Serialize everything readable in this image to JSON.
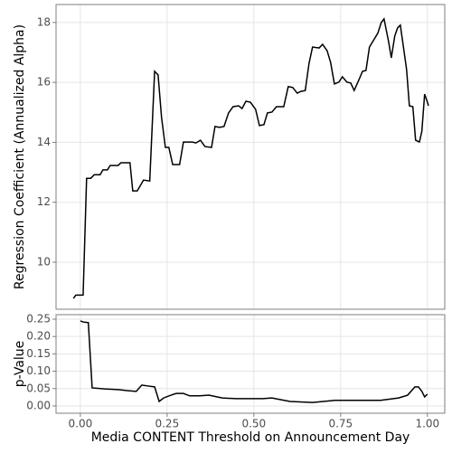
{
  "chart_data": [
    {
      "type": "line",
      "ylabel": "Regression Coefficient (Annualized Alpha)",
      "color": "#000000",
      "grid": true,
      "xlim": [
        -0.07,
        1.05
      ],
      "xticks": [
        0,
        0.25,
        0.5,
        0.75,
        1
      ],
      "ylim": [
        8.43,
        18.6
      ],
      "yticks": [
        10,
        12,
        14,
        16,
        18
      ],
      "x": [
        -0.02,
        -0.013,
        0.008,
        0.018,
        0.03,
        0.04,
        0.057,
        0.065,
        0.078,
        0.086,
        0.109,
        0.117,
        0.143,
        0.151,
        0.164,
        0.182,
        0.2,
        0.214,
        0.224,
        0.234,
        0.245,
        0.255,
        0.266,
        0.286,
        0.297,
        0.323,
        0.333,
        0.346,
        0.359,
        0.378,
        0.388,
        0.401,
        0.414,
        0.427,
        0.44,
        0.456,
        0.466,
        0.477,
        0.49,
        0.505,
        0.516,
        0.529,
        0.539,
        0.552,
        0.565,
        0.586,
        0.599,
        0.612,
        0.625,
        0.635,
        0.648,
        0.659,
        0.669,
        0.688,
        0.698,
        0.711,
        0.721,
        0.732,
        0.745,
        0.755,
        0.768,
        0.779,
        0.789,
        0.802,
        0.813,
        0.823,
        0.833,
        0.846,
        0.857,
        0.867,
        0.875,
        0.888,
        0.896,
        0.906,
        0.914,
        0.922,
        0.932,
        0.94,
        0.948,
        0.958,
        0.966,
        0.977,
        0.984,
        0.992,
        1.0,
        1.003
      ],
      "values": [
        8.79,
        8.9,
        8.9,
        12.8,
        12.8,
        12.92,
        12.92,
        13.08,
        13.08,
        13.23,
        13.23,
        13.32,
        13.32,
        12.38,
        12.38,
        12.74,
        12.71,
        16.37,
        16.25,
        14.83,
        13.83,
        13.83,
        13.26,
        13.26,
        14.01,
        14.01,
        13.98,
        14.07,
        13.86,
        13.83,
        14.53,
        14.5,
        14.53,
        14.98,
        15.19,
        15.22,
        15.13,
        15.37,
        15.34,
        15.1,
        14.56,
        14.59,
        14.98,
        15.01,
        15.19,
        15.19,
        15.86,
        15.83,
        15.64,
        15.7,
        15.73,
        16.64,
        17.18,
        17.15,
        17.27,
        17.06,
        16.67,
        15.95,
        16.01,
        16.19,
        16.01,
        15.98,
        15.73,
        16.07,
        16.37,
        16.4,
        17.18,
        17.43,
        17.64,
        18.0,
        18.12,
        17.37,
        16.82,
        17.55,
        17.82,
        17.91,
        17.09,
        16.43,
        15.22,
        15.19,
        14.07,
        14.01,
        14.37,
        15.61,
        15.34,
        15.22
      ]
    },
    {
      "type": "line",
      "ylabel": "p-Value",
      "xlabel": "Media CONTENT Threshold on Announcement Day",
      "color": "#000000",
      "grid": true,
      "xlim": [
        -0.07,
        1.05
      ],
      "xticks": [
        {
          "value": 0,
          "label": "0.00"
        },
        0.25,
        {
          "value": 0.5,
          "label": "0.50"
        },
        0.75,
        {
          "value": 1,
          "label": "1.00"
        }
      ],
      "ylim": [
        -0.021,
        0.263
      ],
      "yticks": [
        {
          "value": 0,
          "label": "0.00"
        },
        0.05,
        {
          "value": 0.1,
          "label": "0.10"
        },
        0.15,
        {
          "value": 0.2,
          "label": "0.20"
        },
        0.25
      ],
      "x": [
        0.0,
        0.008,
        0.023,
        0.034,
        0.07,
        0.109,
        0.135,
        0.161,
        0.177,
        0.198,
        0.214,
        0.227,
        0.24,
        0.261,
        0.276,
        0.297,
        0.315,
        0.344,
        0.37,
        0.409,
        0.448,
        0.526,
        0.552,
        0.604,
        0.669,
        0.734,
        0.813,
        0.865,
        0.917,
        0.943,
        0.964,
        0.974,
        0.984,
        0.992,
        1.0
      ],
      "values": [
        0.245,
        0.242,
        0.24,
        0.052,
        0.049,
        0.047,
        0.044,
        0.042,
        0.06,
        0.057,
        0.055,
        0.013,
        0.023,
        0.031,
        0.036,
        0.036,
        0.029,
        0.029,
        0.031,
        0.023,
        0.021,
        0.021,
        0.023,
        0.013,
        0.01,
        0.016,
        0.016,
        0.016,
        0.023,
        0.031,
        0.055,
        0.055,
        0.042,
        0.026,
        0.034
      ]
    }
  ]
}
